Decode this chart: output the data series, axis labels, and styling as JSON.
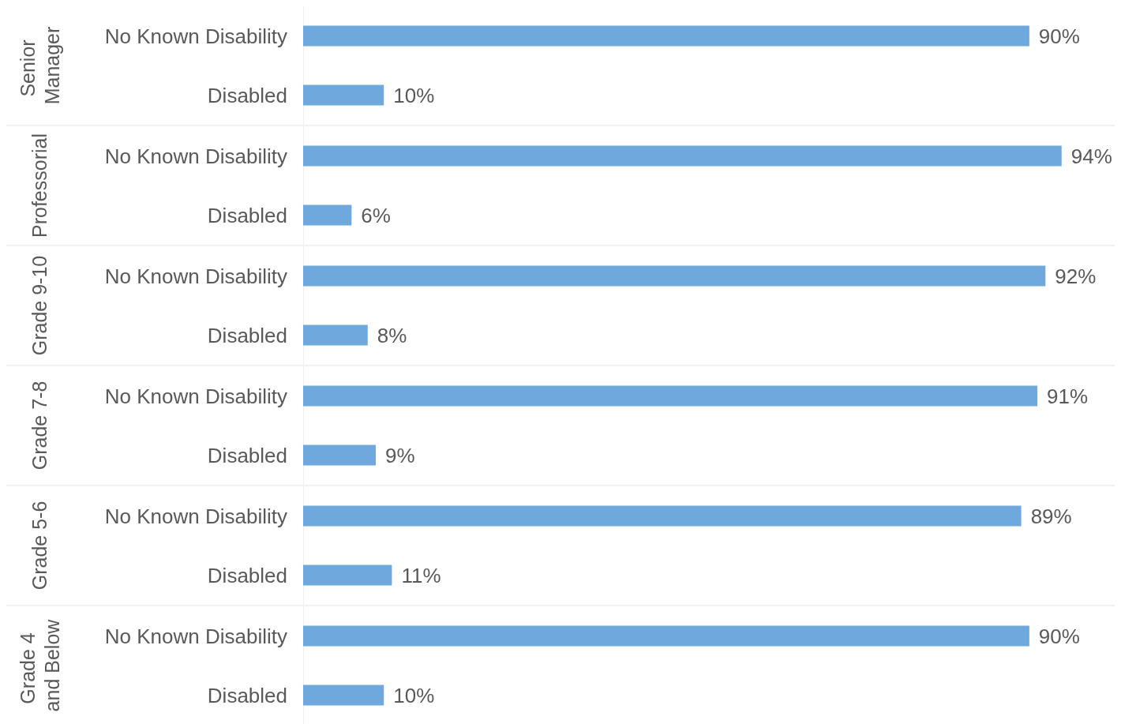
{
  "chart_data": [
    {
      "type": "bar",
      "orientation": "horizontal",
      "ylabel": "Senior Manager",
      "categories": [
        "No Known Disability",
        "Disabled"
      ],
      "values": [
        90,
        10
      ],
      "value_labels": [
        "90%",
        "10%"
      ],
      "color": "#6fa8dc"
    },
    {
      "type": "bar",
      "orientation": "horizontal",
      "ylabel": "Professorial",
      "categories": [
        "No Known Disability",
        "Disabled"
      ],
      "values": [
        94,
        6
      ],
      "value_labels": [
        "94%",
        "6%"
      ],
      "color": "#6fa8dc"
    },
    {
      "type": "bar",
      "orientation": "horizontal",
      "ylabel": "Grade 9-10",
      "categories": [
        "No Known Disability",
        "Disabled"
      ],
      "values": [
        92,
        8
      ],
      "value_labels": [
        "92%",
        "8%"
      ],
      "color": "#6fa8dc"
    },
    {
      "type": "bar",
      "orientation": "horizontal",
      "ylabel": "Grade 7-8",
      "categories": [
        "No Known Disability",
        "Disabled"
      ],
      "values": [
        91,
        9
      ],
      "value_labels": [
        "91%",
        "9%"
      ],
      "color": "#6fa8dc"
    },
    {
      "type": "bar",
      "orientation": "horizontal",
      "ylabel": "Grade 5-6",
      "categories": [
        "No Known Disability",
        "Disabled"
      ],
      "values": [
        89,
        11
      ],
      "value_labels": [
        "89%",
        "11%"
      ],
      "color": "#6fa8dc"
    },
    {
      "type": "bar",
      "orientation": "horizontal",
      "ylabel": "Grade 4 and Below",
      "categories": [
        "No Known Disability",
        "Disabled"
      ],
      "values": [
        90,
        10
      ],
      "value_labels": [
        "90%",
        "10%"
      ],
      "color": "#6fa8dc"
    }
  ]
}
